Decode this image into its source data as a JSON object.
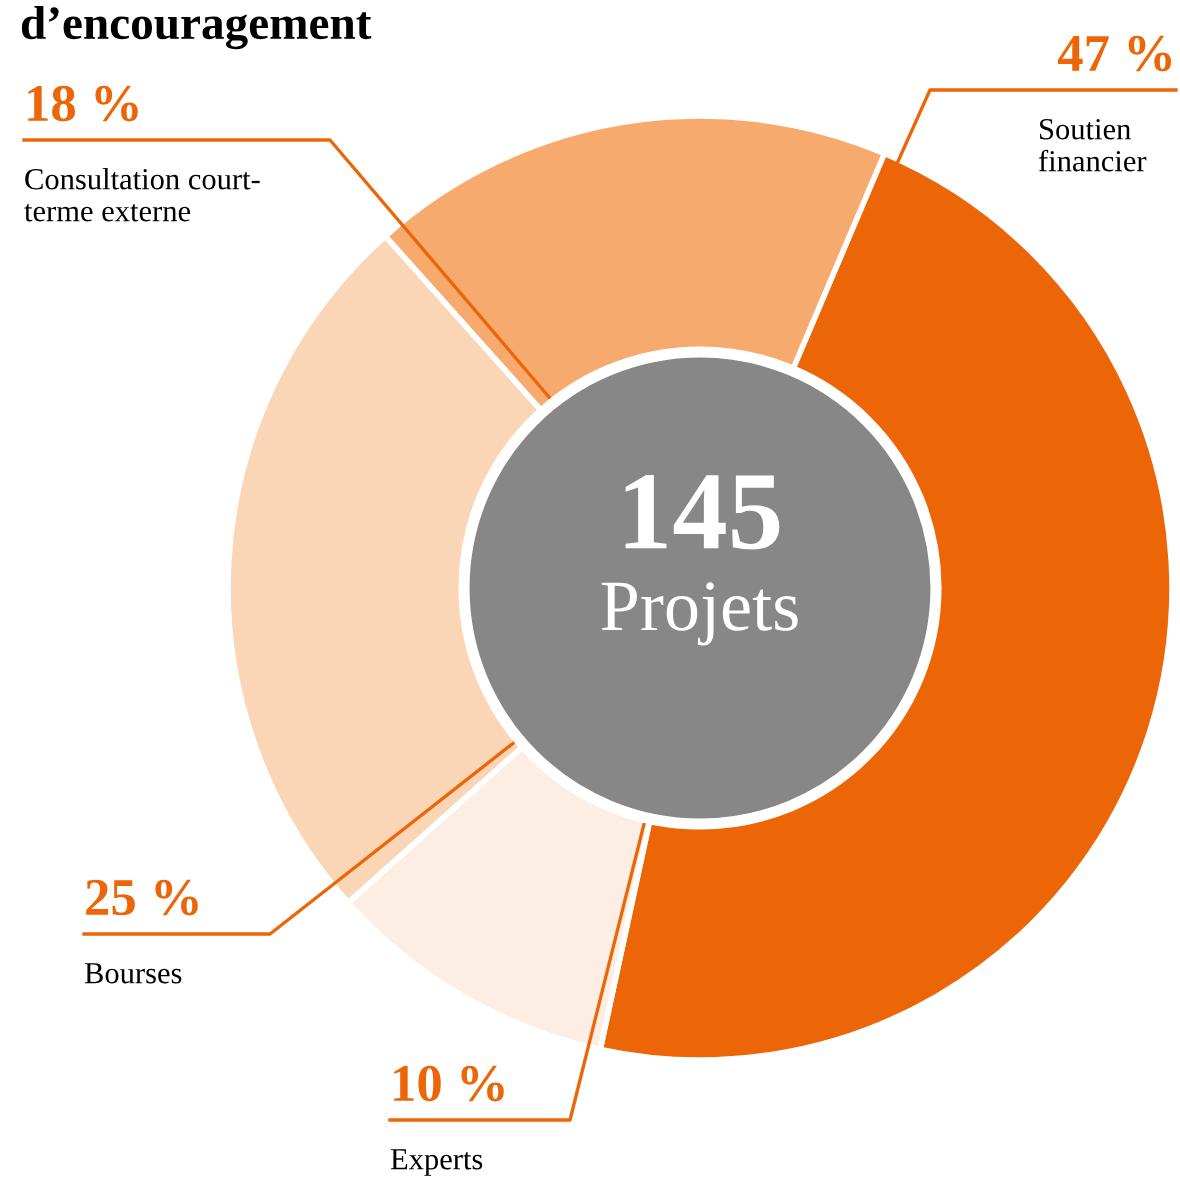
{
  "chart_data": {
    "type": "donut",
    "title": "d’encouragement",
    "categories": [
      "Soutien\nfinancier",
      "Experts",
      "Bourses",
      "Consultation court-\nterme externe"
    ],
    "values": [
      47,
      10,
      25,
      18
    ],
    "value_labels": [
      "47 %",
      "10 %",
      "25 %",
      "18 %"
    ],
    "colors": [
      "#ec6608",
      "#fdeee4",
      "#fbd6b6",
      "#f6aa6e"
    ],
    "annotations": [
      "145",
      "Projets"
    ]
  }
}
